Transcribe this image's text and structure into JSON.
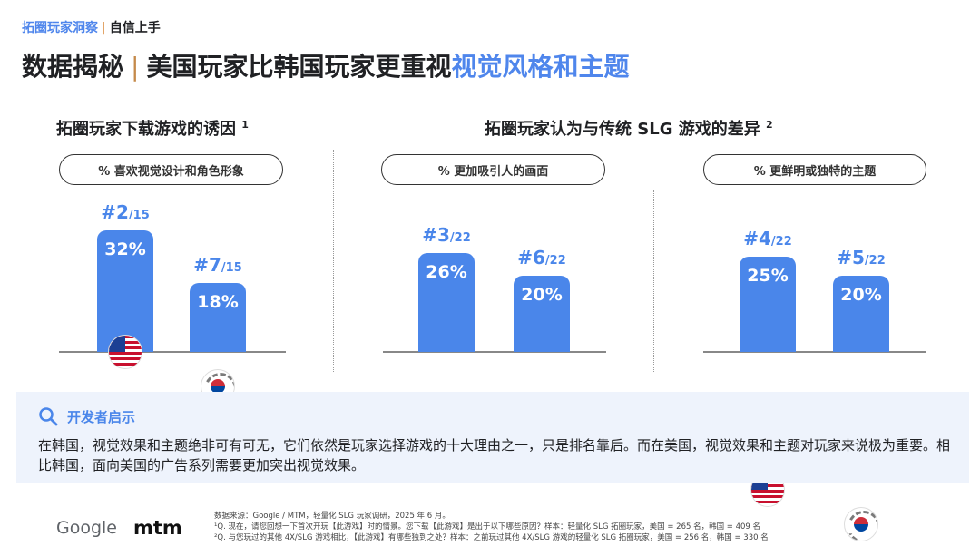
{
  "header": {
    "kicker_a": "拓圈玩家洞察",
    "kicker_sep": "|",
    "kicker_b": "自信上手",
    "title_a": "数据揭秘",
    "title_sep": "|",
    "title_b": "美国玩家比韩国玩家更重视",
    "title_highlight": "视觉风格和主题"
  },
  "sections": [
    {
      "title": "拓圈玩家下载游戏的诱因",
      "note": "1"
    },
    {
      "title": "拓圈玩家认为与传统 SLG 游戏的差异",
      "note": "2"
    }
  ],
  "charts": [
    {
      "label": "% 喜欢视觉设计和角色形象",
      "bars": [
        {
          "country": "us",
          "rank": "#2",
          "of": "/15",
          "value": "32%",
          "pct": 32
        },
        {
          "country": "kr",
          "rank": "#7",
          "of": "/15",
          "value": "18%",
          "pct": 18
        }
      ]
    },
    {
      "label": "% 更加吸引人的画面",
      "bars": [
        {
          "country": "us",
          "rank": "#3",
          "of": "/22",
          "value": "26%",
          "pct": 26
        },
        {
          "country": "kr",
          "rank": "#6",
          "of": "/22",
          "value": "20%",
          "pct": 20
        }
      ]
    },
    {
      "label": "% 更鲜明或独特的主题",
      "bars": [
        {
          "country": "us",
          "rank": "#4",
          "of": "/22",
          "value": "25%",
          "pct": 25
        },
        {
          "country": "kr",
          "rank": "#5",
          "of": "/22",
          "value": "20%",
          "pct": 20
        }
      ]
    }
  ],
  "callout": {
    "title": "开发者启示",
    "body": "在韩国，视觉效果和主题绝非可有可无，它们依然是玩家选择游戏的十大理由之一，只是排名靠后。而在美国，视觉效果和主题对玩家来说极为重要。相比韩国，面向美国的广告系列需要更加突出视觉效果。"
  },
  "footer": {
    "logo_google": "Google",
    "logo_mtm": "mtm",
    "source": "数据来源：Google / MTM，轻量化 SLG 玩家调研，2025 年 6 月。",
    "note1": "¹Q. 现在，请您回想一下首次开玩【此游戏】时的情景。您下载【此游戏】是出于以下哪些原因？样本：轻量化 SLG 拓圈玩家，美国 = 265 名，韩国 = 409 名",
    "note2": "²Q. 与您玩过的其他 4X/SLG 游戏相比，【此游戏】有哪些独到之处？样本：之前玩过其他 4X/SLG 游戏的轻量化 SLG 拓圈玩家，美国 = 256 名，韩国 = 330 名"
  },
  "colors": {
    "accent": "#4a86ea",
    "callout_bg": "#eef3fc"
  }
}
